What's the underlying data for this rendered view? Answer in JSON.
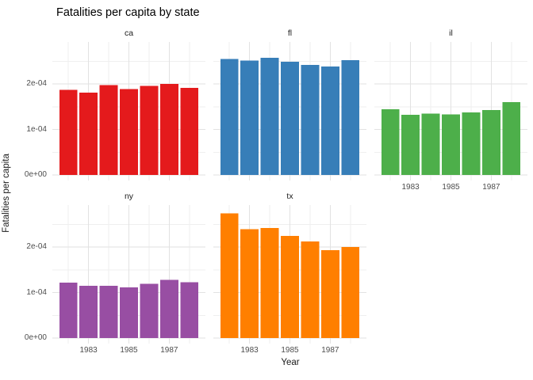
{
  "title": "Fatalities per capita by state",
  "axes": {
    "x_title": "Year",
    "y_title": "Fatalities per capita"
  },
  "style_colors": {
    "background": "#ffffff",
    "grid_major": "#e2e2e2",
    "grid_minor": "#efefef",
    "axis_text": "#4d4d4d",
    "title_text": "#000000",
    "strip_text": "#1a1a1a"
  },
  "chart_data": {
    "type": "bar",
    "title": "Fatalities per capita by state",
    "xlabel": "Year",
    "ylabel": "Fatalities per capita",
    "facet_variable": "state",
    "columns": 3,
    "grid": true,
    "legend": "none",
    "x": [
      1982,
      1983,
      1984,
      1985,
      1986,
      1987,
      1988
    ],
    "x_major_ticks": [
      1983,
      1985,
      1987
    ],
    "x_tick_labels": [
      "1983",
      "1985",
      "1987"
    ],
    "x_minor_ticks": [
      1982,
      1984,
      1986,
      1988
    ],
    "y_ticks": [
      {
        "label": "0e+00",
        "value": 0
      },
      {
        "label": "1e-04",
        "value": 0.0001
      },
      {
        "label": "2e-04",
        "value": 0.0002
      }
    ],
    "y_minor_ticks": [
      5e-05,
      0.00015,
      0.00025
    ],
    "ylim": [
      0,
      0.000292
    ],
    "facets": [
      {
        "state": "ca",
        "color": "#e41a1c",
        "values": [
          0.000187,
          0.000181,
          0.000197,
          0.000189,
          0.000196,
          0.0002,
          0.000191
        ]
      },
      {
        "state": "fl",
        "color": "#377eb8",
        "values": [
          0.000255,
          0.000251,
          0.000257,
          0.000249,
          0.000242,
          0.000238,
          0.000252
        ]
      },
      {
        "state": "il",
        "color": "#4daf4a",
        "values": [
          0.000144,
          0.000132,
          0.000135,
          0.000133,
          0.000137,
          0.000143,
          0.00016
        ]
      },
      {
        "state": "ny",
        "color": "#984ea3",
        "values": [
          0.000122,
          0.000115,
          0.000115,
          0.000111,
          0.000119,
          0.000128,
          0.000123
        ]
      },
      {
        "state": "tx",
        "color": "#ff7f00",
        "values": [
          0.000274,
          0.000239,
          0.000242,
          0.000224,
          0.000212,
          0.000193,
          0.0002
        ]
      }
    ]
  }
}
